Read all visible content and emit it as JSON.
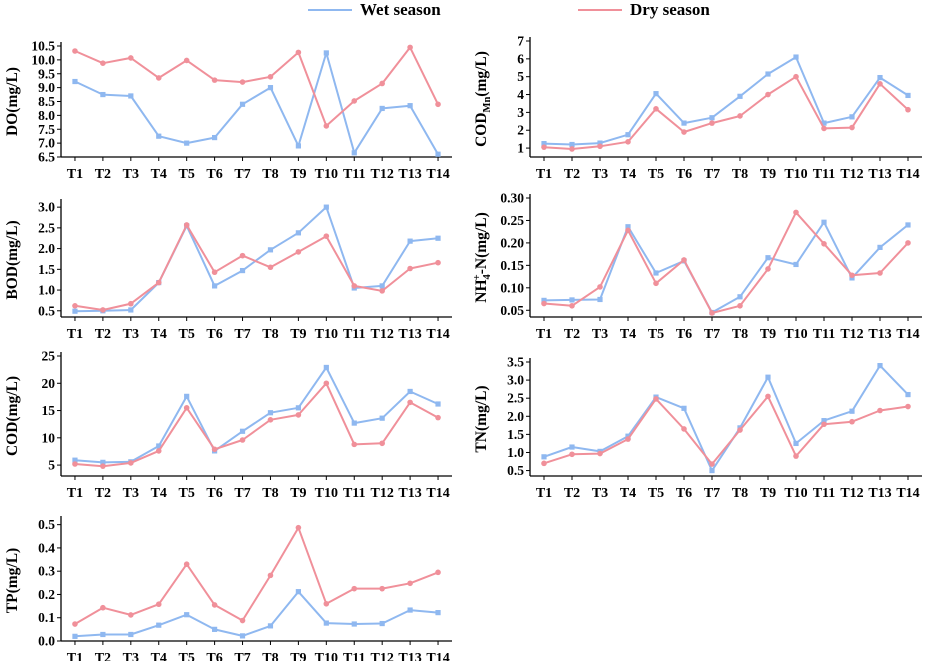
{
  "legend": {
    "wet_label": "Wet season",
    "dry_label": "Dry season",
    "wet_color": "#8fb8f0",
    "dry_color": "#f0909a"
  },
  "chart_data": [
    {
      "type": "line",
      "id": "do",
      "ylabel": "DO(mg/L)",
      "categories": [
        "T1",
        "T2",
        "T3",
        "T4",
        "T5",
        "T6",
        "T7",
        "T8",
        "T9",
        "T10",
        "T11",
        "T12",
        "T13",
        "T14"
      ],
      "ylim": [
        6.5,
        10.5
      ],
      "yticks": [
        "6.5",
        "7.0",
        "7.5",
        "8.0",
        "8.5",
        "9.0",
        "9.5",
        "10.0",
        "10.5"
      ],
      "series": [
        {
          "name": "Wet season",
          "values": [
            9.22,
            8.75,
            8.7,
            7.25,
            7.0,
            7.2,
            8.4,
            9.0,
            6.9,
            10.25,
            6.65,
            8.25,
            8.35,
            6.6
          ]
        },
        {
          "name": "Dry season",
          "values": [
            10.32,
            9.88,
            10.07,
            9.35,
            9.98,
            9.27,
            9.2,
            9.39,
            10.27,
            7.62,
            8.52,
            9.15,
            10.45,
            8.4
          ]
        }
      ]
    },
    {
      "type": "line",
      "id": "codmn",
      "ylabel": "COD",
      "ylabel_sub": "Mn",
      "ylabel_tail": "(mg/L)",
      "categories": [
        "T1",
        "T2",
        "T3",
        "T4",
        "T5",
        "T6",
        "T7",
        "T8",
        "T9",
        "T10",
        "T11",
        "T12",
        "T13",
        "T14"
      ],
      "ylim": [
        0.5,
        7
      ],
      "yticks": [
        "1",
        "2",
        "3",
        "4",
        "5",
        "6",
        "7"
      ],
      "series": [
        {
          "name": "Wet season",
          "values": [
            1.25,
            1.2,
            1.28,
            1.75,
            4.05,
            2.4,
            2.7,
            3.9,
            5.15,
            6.1,
            2.4,
            2.75,
            4.95,
            3.95
          ]
        },
        {
          "name": "Dry season",
          "values": [
            1.05,
            0.95,
            1.1,
            1.35,
            3.2,
            1.9,
            2.4,
            2.8,
            4.0,
            5.0,
            2.1,
            2.15,
            4.6,
            3.15
          ]
        }
      ]
    },
    {
      "type": "line",
      "id": "bod",
      "ylabel": "BOD(mg/L)",
      "categories": [
        "T1",
        "T2",
        "T3",
        "T4",
        "T5",
        "T6",
        "T7",
        "T8",
        "T9",
        "T10",
        "T11",
        "T12",
        "T13",
        "T14"
      ],
      "ylim": [
        0.35,
        3.1
      ],
      "yticks": [
        "0.5",
        "1.0",
        "1.5",
        "2.0",
        "2.5",
        "3.0"
      ],
      "series": [
        {
          "name": "Wet season",
          "values": [
            0.49,
            0.5,
            0.52,
            1.18,
            2.55,
            1.1,
            1.47,
            1.97,
            2.38,
            3.0,
            1.05,
            1.1,
            2.18,
            2.25
          ]
        },
        {
          "name": "Dry season",
          "values": [
            0.62,
            0.52,
            0.67,
            1.18,
            2.57,
            1.43,
            1.83,
            1.55,
            1.92,
            2.3,
            1.1,
            0.98,
            1.52,
            1.66
          ]
        }
      ]
    },
    {
      "type": "line",
      "id": "nh4",
      "ylabel": "NH",
      "ylabel_sub": "4",
      "ylabel_sup": "+",
      "ylabel_tail": "-N(mg/L)",
      "categories": [
        "T1",
        "T2",
        "T3",
        "T4",
        "T5",
        "T6",
        "T7",
        "T8",
        "T9",
        "T10",
        "T11",
        "T12",
        "T13",
        "T14"
      ],
      "ylim": [
        0.035,
        0.3
      ],
      "yticks": [
        "0.05",
        "0.10",
        "0.15",
        "0.20",
        "0.25",
        "0.30"
      ],
      "series": [
        {
          "name": "Wet season",
          "values": [
            0.072,
            0.073,
            0.074,
            0.236,
            0.133,
            0.16,
            0.045,
            0.08,
            0.167,
            0.152,
            0.246,
            0.122,
            0.19,
            0.24
          ]
        },
        {
          "name": "Dry season",
          "values": [
            0.065,
            0.06,
            0.102,
            0.228,
            0.11,
            0.162,
            0.044,
            0.06,
            0.142,
            0.268,
            0.198,
            0.128,
            0.133,
            0.2
          ]
        }
      ]
    },
    {
      "type": "line",
      "id": "cod",
      "ylabel": "COD(mg/L)",
      "categories": [
        "T1",
        "T2",
        "T3",
        "T4",
        "T5",
        "T6",
        "T7",
        "T8",
        "T9",
        "T10",
        "T11",
        "T12",
        "T13",
        "T14"
      ],
      "ylim": [
        3,
        25
      ],
      "yticks": [
        "5",
        "10",
        "15",
        "20",
        "25"
      ],
      "series": [
        {
          "name": "Wet season",
          "values": [
            5.9,
            5.5,
            5.6,
            8.5,
            17.6,
            7.6,
            11.2,
            14.6,
            15.5,
            22.9,
            12.7,
            13.6,
            18.5,
            16.2
          ]
        },
        {
          "name": "Dry season",
          "values": [
            5.2,
            4.8,
            5.4,
            7.6,
            15.5,
            7.9,
            9.6,
            13.3,
            14.2,
            20.0,
            8.8,
            9.0,
            16.5,
            13.7
          ]
        }
      ]
    },
    {
      "type": "line",
      "id": "tn",
      "ylabel": "TN(mg/L)",
      "categories": [
        "T1",
        "T2",
        "T3",
        "T4",
        "T5",
        "T6",
        "T7",
        "T8",
        "T9",
        "T10",
        "T11",
        "T12",
        "T13",
        "T14"
      ],
      "ylim": [
        0.35,
        3.5
      ],
      "yticks": [
        "0.5",
        "1.0",
        "1.5",
        "2.0",
        "2.5",
        "3.0",
        "3.5"
      ],
      "series": [
        {
          "name": "Wet season",
          "values": [
            0.88,
            1.15,
            1.03,
            1.45,
            2.53,
            2.22,
            0.5,
            1.68,
            3.08,
            1.25,
            1.88,
            2.14,
            3.4,
            2.6
          ]
        },
        {
          "name": "Dry season",
          "values": [
            0.7,
            0.95,
            0.97,
            1.37,
            2.48,
            1.65,
            0.68,
            1.62,
            2.55,
            0.9,
            1.78,
            1.85,
            2.16,
            2.27
          ]
        }
      ]
    },
    {
      "type": "line",
      "id": "tp",
      "ylabel": "TP(mg/L)",
      "categories": [
        "T1",
        "T2",
        "T3",
        "T4",
        "T5",
        "T6",
        "T7",
        "T8",
        "T9",
        "T10",
        "T11",
        "T12",
        "T13",
        "T14"
      ],
      "ylim": [
        0,
        0.52
      ],
      "yticks": [
        "0.0",
        "0.1",
        "0.2",
        "0.3",
        "0.4",
        "0.5"
      ],
      "series": [
        {
          "name": "Wet season",
          "values": [
            0.02,
            0.028,
            0.028,
            0.068,
            0.113,
            0.05,
            0.022,
            0.065,
            0.212,
            0.077,
            0.073,
            0.075,
            0.133,
            0.122
          ]
        },
        {
          "name": "Dry season",
          "values": [
            0.073,
            0.143,
            0.112,
            0.158,
            0.33,
            0.155,
            0.088,
            0.282,
            0.487,
            0.16,
            0.225,
            0.225,
            0.248,
            0.295
          ]
        }
      ]
    }
  ]
}
